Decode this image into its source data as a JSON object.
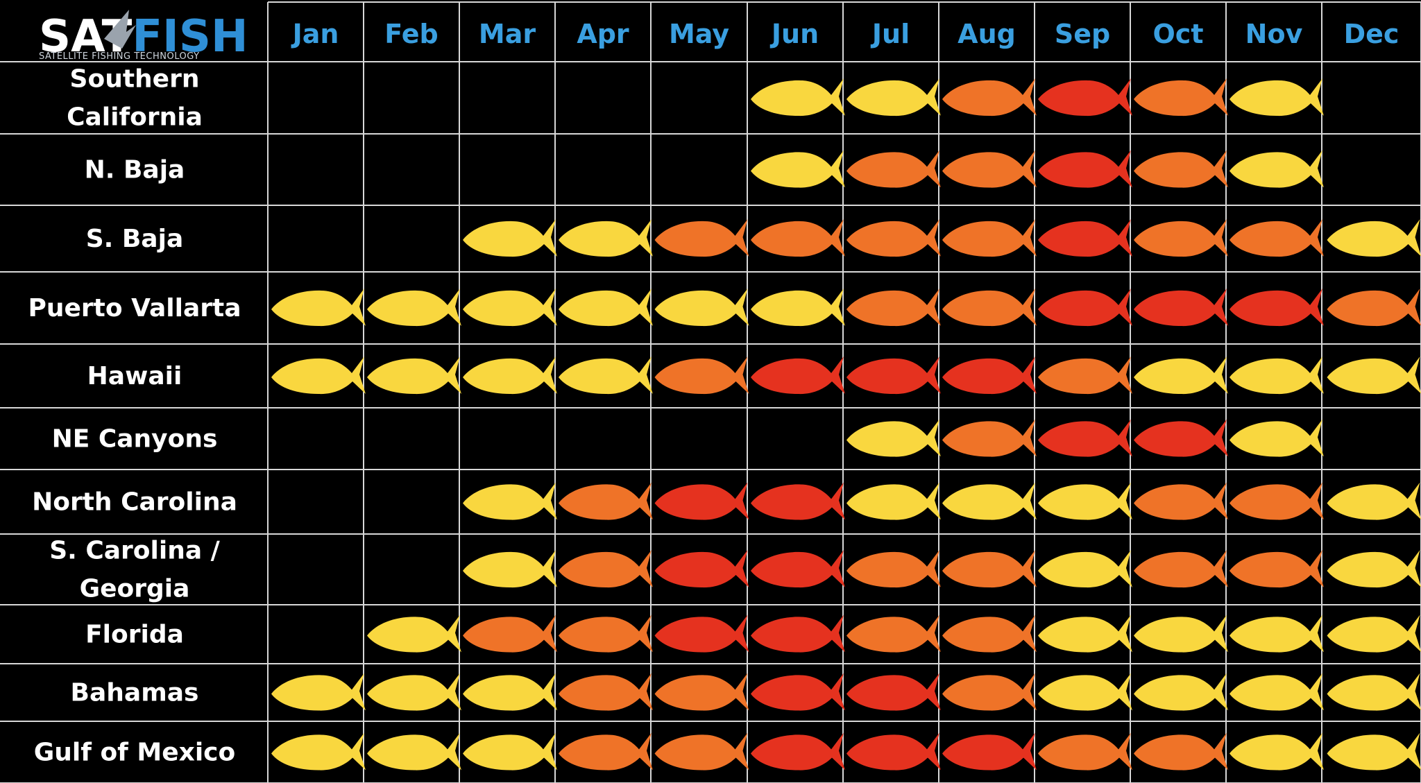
{
  "logo": {
    "part1": "SAT",
    "part2": "FISH",
    "tagline": "SATELLITE FISHING TECHNOLOGY"
  },
  "colors": {
    "background": "#000000",
    "month_text": "#3a9fe0",
    "region_text": "#ffffff",
    "grid": "#d8d8d8",
    "logo_sat": "#ffffff",
    "logo_fish": "#2f8fd6",
    "level_1": "#f9d73f",
    "level_2": "#ef7328",
    "level_3": "#e5321f"
  },
  "chart_data": {
    "type": "heatmap",
    "columns": [
      "Jan",
      "Feb",
      "Mar",
      "Apr",
      "May",
      "Jun",
      "Jul",
      "Aug",
      "Sep",
      "Oct",
      "Nov",
      "Dec"
    ],
    "rows": [
      {
        "label": [
          "Southern",
          "California"
        ],
        "values": [
          0,
          0,
          0,
          0,
          0,
          1,
          1,
          2,
          3,
          2,
          1,
          0
        ]
      },
      {
        "label": [
          "N. Baja"
        ],
        "values": [
          0,
          0,
          0,
          0,
          0,
          1,
          2,
          2,
          3,
          2,
          1,
          0
        ]
      },
      {
        "label": [
          "S. Baja"
        ],
        "values": [
          0,
          0,
          1,
          1,
          2,
          2,
          2,
          2,
          3,
          2,
          2,
          1
        ]
      },
      {
        "label": [
          "Puerto Vallarta"
        ],
        "values": [
          1,
          1,
          1,
          1,
          1,
          1,
          2,
          2,
          3,
          3,
          3,
          2
        ]
      },
      {
        "label": [
          "Hawaii"
        ],
        "values": [
          1,
          1,
          1,
          1,
          2,
          3,
          3,
          3,
          2,
          1,
          1,
          1
        ]
      },
      {
        "label": [
          "NE Canyons"
        ],
        "values": [
          0,
          0,
          0,
          0,
          0,
          0,
          1,
          2,
          3,
          3,
          1,
          0
        ]
      },
      {
        "label": [
          "North Carolina"
        ],
        "values": [
          0,
          0,
          1,
          2,
          3,
          3,
          1,
          1,
          1,
          2,
          2,
          1
        ]
      },
      {
        "label": [
          "S. Carolina /",
          "Georgia"
        ],
        "values": [
          0,
          0,
          1,
          2,
          3,
          3,
          2,
          2,
          1,
          2,
          2,
          1
        ]
      },
      {
        "label": [
          "Florida"
        ],
        "values": [
          0,
          1,
          2,
          2,
          3,
          3,
          2,
          2,
          1,
          1,
          1,
          1
        ]
      },
      {
        "label": [
          "Bahamas"
        ],
        "values": [
          1,
          1,
          1,
          2,
          2,
          3,
          3,
          2,
          1,
          1,
          1,
          1
        ]
      },
      {
        "label": [
          "Gulf of Mexico"
        ],
        "values": [
          1,
          1,
          1,
          2,
          2,
          3,
          3,
          3,
          2,
          2,
          1,
          1
        ]
      }
    ],
    "scale": {
      "0": "none",
      "1": "yellow",
      "2": "orange",
      "3": "red"
    }
  }
}
